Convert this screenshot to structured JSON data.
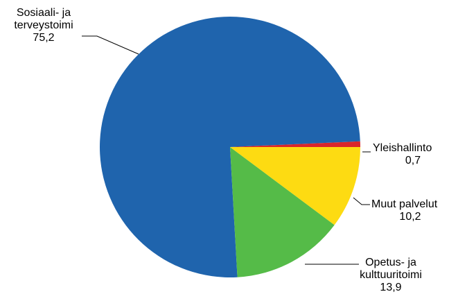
{
  "chart_data": {
    "type": "pie",
    "title": "",
    "start_angle_deg": 0,
    "direction": "counterclockwise",
    "slices": [
      {
        "label": [
          "Yleishallinto"
        ],
        "value_text": "0,7",
        "value": 0.7,
        "color": "#d9262b"
      },
      {
        "label": [
          "Sosiaali- ja",
          "terveystoimi"
        ],
        "value_text": "75,2",
        "value": 75.2,
        "color": "#1f64ad"
      },
      {
        "label": [
          "Opetus- ja",
          "kulttuuritoimi"
        ],
        "value_text": "13,9",
        "value": 13.9,
        "color": "#55bb48"
      },
      {
        "label": [
          "Muut palvelut"
        ],
        "value_text": "10,2",
        "value": 10.2,
        "color": "#fddb12"
      }
    ]
  }
}
